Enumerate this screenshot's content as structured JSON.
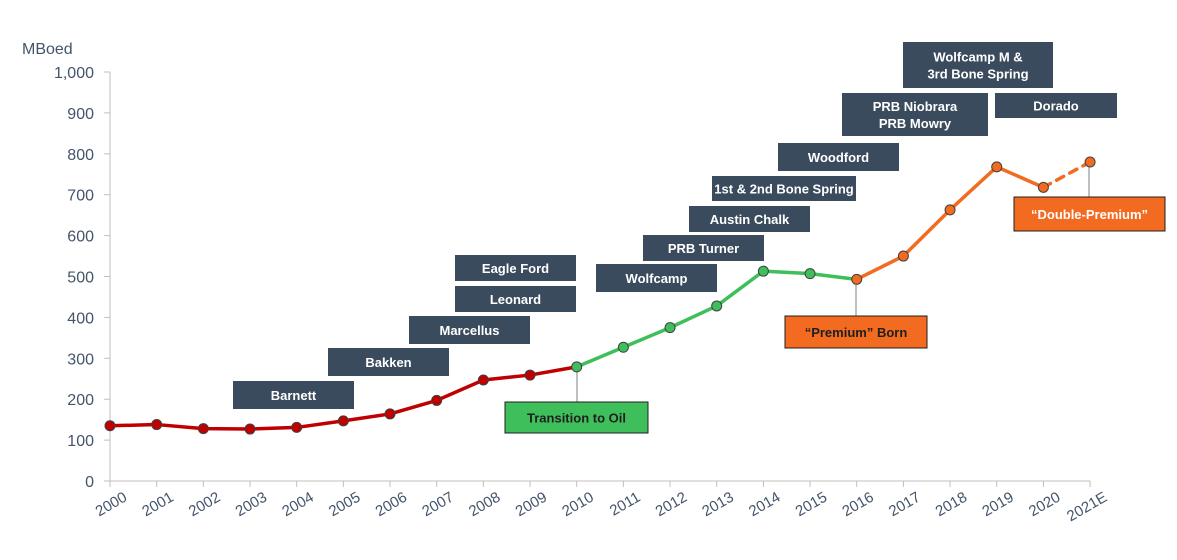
{
  "chart_data": {
    "type": "line",
    "ylabel": "MBoed",
    "ylim": [
      0,
      1000
    ],
    "yticks": [
      "0",
      "100",
      "200",
      "300",
      "400",
      "500",
      "600",
      "700",
      "800",
      "900",
      "1,000"
    ],
    "categories": [
      "2000",
      "2001",
      "2002",
      "2003",
      "2004",
      "2005",
      "2006",
      "2007",
      "2008",
      "2009",
      "2010",
      "2011",
      "2012",
      "2013",
      "2014",
      "2015",
      "2016",
      "2017",
      "2018",
      "2019",
      "2020",
      "2021E"
    ],
    "values": [
      135,
      138,
      128,
      127,
      131,
      147,
      164,
      197,
      247,
      259,
      279,
      327,
      375,
      428,
      513,
      507,
      493,
      550,
      663,
      768,
      718,
      780
    ],
    "series": [
      {
        "name": "",
        "color": "#C00000",
        "from": 0,
        "to": 10
      },
      {
        "name": "",
        "color": "#3FBF5C",
        "from": 10,
        "to": 16
      },
      {
        "name": "",
        "color": "#F26B21",
        "from": 16,
        "to": 20
      },
      {
        "name": "",
        "color": "#F26B21",
        "from": 20,
        "to": 21,
        "dashed": true
      }
    ],
    "annotations": [
      {
        "lines": [
          "Barnett"
        ],
        "style": "dark"
      },
      {
        "lines": [
          "Bakken"
        ],
        "style": "dark"
      },
      {
        "lines": [
          "Marcellus"
        ],
        "style": "dark"
      },
      {
        "lines": [
          "Leonard"
        ],
        "style": "dark"
      },
      {
        "lines": [
          "Eagle Ford"
        ],
        "style": "dark"
      },
      {
        "lines": [
          "Wolfcamp"
        ],
        "style": "dark"
      },
      {
        "lines": [
          "PRB Turner"
        ],
        "style": "dark"
      },
      {
        "lines": [
          "Austin Chalk"
        ],
        "style": "dark"
      },
      {
        "lines": [
          "1st & 2nd Bone Spring"
        ],
        "style": "dark"
      },
      {
        "lines": [
          "Woodford"
        ],
        "style": "dark"
      },
      {
        "lines": [
          "PRB Niobrara",
          "PRB Mowry"
        ],
        "style": "dark"
      },
      {
        "lines": [
          "Wolfcamp M &",
          "3rd Bone Spring"
        ],
        "style": "dark"
      },
      {
        "lines": [
          "Dorado"
        ],
        "style": "dark"
      },
      {
        "lines": [
          "Transition to Oil"
        ],
        "style": "green"
      },
      {
        "lines": [
          "“Premium” Born"
        ],
        "style": "orange"
      },
      {
        "lines": [
          "“Double-Premium”"
        ],
        "style": "orange"
      }
    ]
  }
}
